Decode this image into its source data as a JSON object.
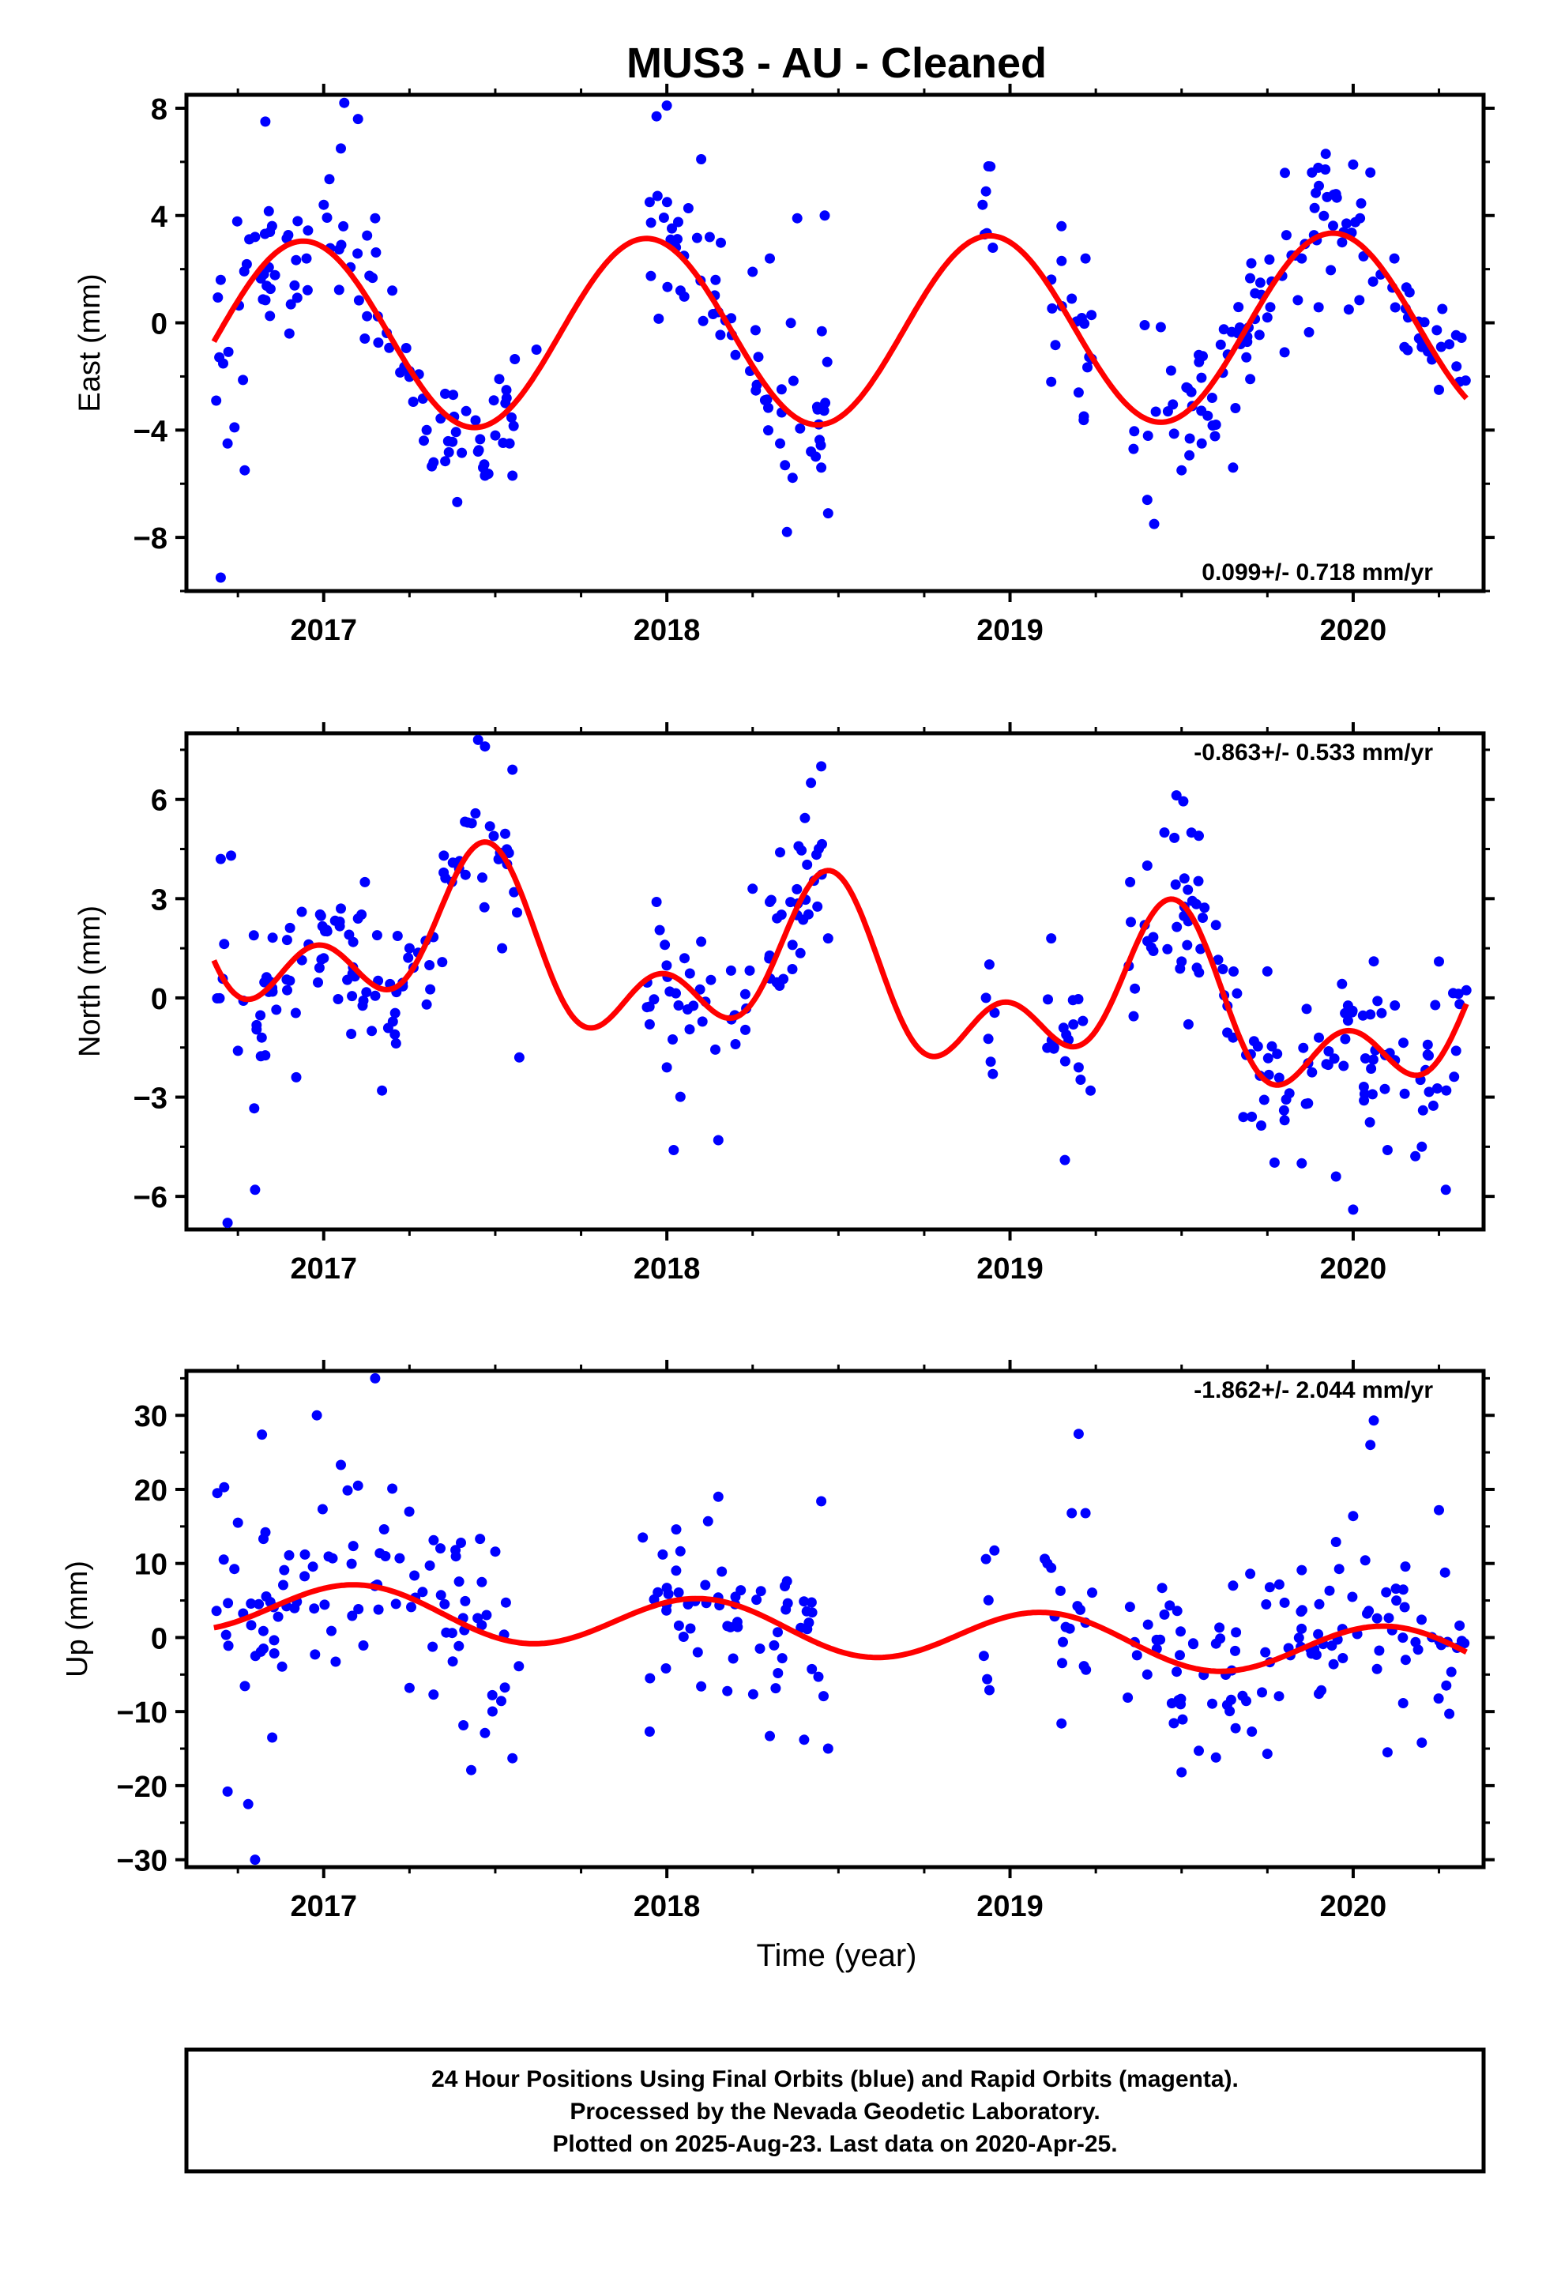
{
  "chart_data": [
    {
      "type": "scatter",
      "title": "MUS3  - AU - Cleaned",
      "ylabel": "East (mm)",
      "xlabel": "",
      "xlim": [
        2016.6,
        2020.38
      ],
      "ylim": [
        -10,
        8.5
      ],
      "y_ticks": [
        -8,
        -4,
        0,
        4,
        8
      ],
      "x_ticks": [
        2017,
        2018,
        2019,
        2020
      ],
      "rate_text": "0.099+/- 0.718 mm/yr",
      "rate_position": "bottom-right",
      "series": [
        {
          "name": "24 Hour Positions Using Final Orbits (blue)",
          "color": "#0000ff",
          "segments": [
            [
              2016.68,
              2017.57
            ],
            [
              2017.94,
              2018.47
            ],
            [
              2018.92,
              2018.96
            ],
            [
              2019.1,
              2019.24
            ],
            [
              2019.34,
              2020.33
            ]
          ],
          "points": [
            [
              2016.7,
              1.6
            ],
            [
              2016.72,
              -4.5
            ],
            [
              2016.74,
              -3.9
            ],
            [
              2016.77,
              -5.5
            ],
            [
              2016.8,
              3.2
            ],
            [
              2016.83,
              7.5
            ],
            [
              2016.7,
              -9.5
            ],
            [
              2016.9,
              -0.4
            ],
            [
              2016.95,
              2.4
            ],
            [
              2017.0,
              4.4
            ],
            [
              2017.05,
              6.5
            ],
            [
              2017.06,
              8.2
            ],
            [
              2017.1,
              7.6
            ],
            [
              2017.15,
              3.9
            ],
            [
              2017.2,
              1.2
            ],
            [
              2017.25,
              -1.8
            ],
            [
              2017.3,
              -4.0
            ],
            [
              2017.32,
              -5.2
            ],
            [
              2017.38,
              -3.5
            ],
            [
              2017.45,
              -4.8
            ],
            [
              2017.47,
              -5.7
            ],
            [
              2017.5,
              -4.2
            ],
            [
              2017.55,
              -5.7
            ],
            [
              2017.62,
              -1.0
            ],
            [
              2017.95,
              4.5
            ],
            [
              2017.97,
              7.7
            ],
            [
              2018.0,
              8.1
            ],
            [
              2018.05,
              2.5
            ],
            [
              2018.1,
              6.1
            ],
            [
              2018.15,
              0.4
            ],
            [
              2018.2,
              -1.2
            ],
            [
              2018.25,
              1.9
            ],
            [
              2018.3,
              2.4
            ],
            [
              2018.33,
              -4.5
            ],
            [
              2018.35,
              -7.8
            ],
            [
              2018.38,
              3.9
            ],
            [
              2018.42,
              -4.8
            ],
            [
              2018.45,
              -5.4
            ],
            [
              2018.46,
              4.0
            ],
            [
              2018.47,
              -7.1
            ],
            [
              2018.92,
              4.4
            ],
            [
              2018.93,
              4.9
            ],
            [
              2018.95,
              2.8
            ],
            [
              2019.12,
              -2.2
            ],
            [
              2019.15,
              3.6
            ],
            [
              2019.18,
              0.9
            ],
            [
              2019.2,
              -2.6
            ],
            [
              2019.22,
              2.4
            ],
            [
              2019.36,
              -4.7
            ],
            [
              2019.4,
              -6.6
            ],
            [
              2019.42,
              -7.5
            ],
            [
              2019.46,
              -3.3
            ],
            [
              2019.5,
              -5.5
            ],
            [
              2019.55,
              -1.2
            ],
            [
              2019.6,
              -3.8
            ],
            [
              2019.65,
              -5.4
            ],
            [
              2019.7,
              -2.1
            ],
            [
              2019.75,
              0.2
            ],
            [
              2019.8,
              -1.1
            ],
            [
              2019.85,
              2.4
            ],
            [
              2019.88,
              5.6
            ],
            [
              2019.92,
              6.3
            ],
            [
              2019.95,
              4.8
            ],
            [
              2020.0,
              5.9
            ],
            [
              2020.02,
              3.9
            ],
            [
              2020.05,
              5.6
            ],
            [
              2020.08,
              1.8
            ],
            [
              2020.12,
              2.4
            ],
            [
              2020.16,
              0.2
            ],
            [
              2020.2,
              -0.9
            ],
            [
              2020.25,
              -2.5
            ],
            [
              2020.28,
              -0.8
            ],
            [
              2020.31,
              -2.2
            ]
          ]
        },
        {
          "name": "Rapid Orbits (magenta)",
          "color": "#ff00ff",
          "points": []
        },
        {
          "name": "model",
          "color": "#ff0000",
          "mean": -0.3,
          "trend": 0.099,
          "annual_amp": 3.5,
          "annual_peak": 0.94,
          "semi_amp": 0.0,
          "semi_peak": 0.0,
          "x_range": [
            2016.68,
            2020.33
          ]
        }
      ]
    },
    {
      "type": "scatter",
      "title": "",
      "ylabel": "North (mm)",
      "xlabel": "",
      "xlim": [
        2016.6,
        2020.38
      ],
      "ylim": [
        -7,
        8
      ],
      "y_ticks": [
        -6,
        -3,
        0,
        3,
        6
      ],
      "x_ticks": [
        2017,
        2018,
        2019,
        2020
      ],
      "rate_text": "-0.863+/- 0.533 mm/yr",
      "rate_position": "top-right",
      "series": [
        {
          "name": "24 Hour Positions Using Final Orbits (blue)",
          "color": "#0000ff",
          "segments": [
            [
              2016.68,
              2017.57
            ],
            [
              2017.94,
              2018.47
            ],
            [
              2018.92,
              2018.96
            ],
            [
              2019.1,
              2019.24
            ],
            [
              2019.34,
              2020.33
            ]
          ],
          "points": [
            [
              2016.7,
              4.2
            ],
            [
              2016.73,
              4.3
            ],
            [
              2016.72,
              -6.8
            ],
            [
              2016.8,
              -5.8
            ],
            [
              2016.75,
              -1.6
            ],
            [
              2016.85,
              0.3
            ],
            [
              2016.92,
              -2.4
            ],
            [
              2017.0,
              1.2
            ],
            [
              2017.05,
              2.7
            ],
            [
              2017.1,
              2.4
            ],
            [
              2017.12,
              3.5
            ],
            [
              2017.17,
              -2.8
            ],
            [
              2017.25,
              1.5
            ],
            [
              2017.3,
              -0.2
            ],
            [
              2017.35,
              4.3
            ],
            [
              2017.42,
              5.3
            ],
            [
              2017.45,
              7.8
            ],
            [
              2017.47,
              7.6
            ],
            [
              2017.52,
              1.5
            ],
            [
              2017.55,
              6.9
            ],
            [
              2017.57,
              -1.8
            ],
            [
              2017.95,
              -0.8
            ],
            [
              2017.97,
              2.9
            ],
            [
              2018.0,
              -2.1
            ],
            [
              2018.02,
              -4.6
            ],
            [
              2018.1,
              1.7
            ],
            [
              2018.15,
              -4.3
            ],
            [
              2018.2,
              -1.4
            ],
            [
              2018.25,
              3.3
            ],
            [
              2018.3,
              2.9
            ],
            [
              2018.33,
              4.4
            ],
            [
              2018.38,
              2.5
            ],
            [
              2018.42,
              6.5
            ],
            [
              2018.45,
              7.0
            ],
            [
              2018.47,
              1.8
            ],
            [
              2018.93,
              0.0
            ],
            [
              2018.95,
              -2.3
            ],
            [
              2019.12,
              1.8
            ],
            [
              2019.16,
              -4.9
            ],
            [
              2019.2,
              -2.1
            ],
            [
              2019.35,
              3.5
            ],
            [
              2019.4,
              4.0
            ],
            [
              2019.45,
              5.0
            ],
            [
              2019.5,
              1.1
            ],
            [
              2019.52,
              -0.8
            ],
            [
              2019.55,
              4.9
            ],
            [
              2019.6,
              2.2
            ],
            [
              2019.65,
              -1.2
            ],
            [
              2019.68,
              -3.6
            ],
            [
              2019.75,
              0.8
            ],
            [
              2019.8,
              -3.7
            ],
            [
              2019.85,
              -5.0
            ],
            [
              2019.9,
              -1.2
            ],
            [
              2019.95,
              -5.4
            ],
            [
              2020.0,
              -6.4
            ],
            [
              2020.05,
              -0.5
            ],
            [
              2020.1,
              -4.6
            ],
            [
              2020.15,
              -2.9
            ],
            [
              2020.2,
              -4.5
            ],
            [
              2020.25,
              1.1
            ],
            [
              2020.27,
              -5.8
            ],
            [
              2020.3,
              -1.6
            ]
          ]
        },
        {
          "name": "Rapid Orbits (magenta)",
          "color": "#ff00ff",
          "points": []
        },
        {
          "name": "model",
          "color": "#ff0000",
          "mean": 0.55,
          "trend": -0.863,
          "annual_amp": 1.8,
          "annual_peak": 0.45,
          "semi_amp": 1.5,
          "semi_peak": 0.48,
          "x_range": [
            2016.68,
            2020.33
          ]
        }
      ]
    },
    {
      "type": "scatter",
      "title": "",
      "ylabel": "Up (mm)",
      "xlabel": "Time (year)",
      "xlim": [
        2016.6,
        2020.38
      ],
      "ylim": [
        -31,
        36
      ],
      "y_ticks": [
        -30,
        -20,
        -10,
        0,
        10,
        20,
        30
      ],
      "x_ticks": [
        2017,
        2018,
        2019,
        2020
      ],
      "rate_text": "-1.862+/- 2.044 mm/yr",
      "rate_position": "top-right",
      "series": [
        {
          "name": "24 Hour Positions Using Final Orbits (blue)",
          "color": "#0000ff",
          "segments": [
            [
              2016.68,
              2017.57
            ],
            [
              2017.94,
              2018.47
            ],
            [
              2018.92,
              2018.96
            ],
            [
              2019.1,
              2019.24
            ],
            [
              2019.34,
              2020.33
            ]
          ],
          "points": [
            [
              2016.69,
              19.5
            ],
            [
              2016.71,
              20.3
            ],
            [
              2016.75,
              15.5
            ],
            [
              2016.72,
              -20.8
            ],
            [
              2016.78,
              -22.5
            ],
            [
              2016.82,
              27.4
            ],
            [
              2016.8,
              -30.0
            ],
            [
              2016.85,
              -13.5
            ],
            [
              2016.98,
              30.0
            ],
            [
              2017.05,
              23.3
            ],
            [
              2017.1,
              20.5
            ],
            [
              2017.15,
              35.0
            ],
            [
              2017.2,
              20.1
            ],
            [
              2017.25,
              -6.8
            ],
            [
              2017.32,
              -7.7
            ],
            [
              2017.4,
              12.8
            ],
            [
              2017.43,
              -17.9
            ],
            [
              2017.47,
              -12.9
            ],
            [
              2017.5,
              11.6
            ],
            [
              2017.55,
              -16.3
            ],
            [
              2017.93,
              13.5
            ],
            [
              2017.95,
              -12.7
            ],
            [
              2018.0,
              6.7
            ],
            [
              2018.1,
              -6.6
            ],
            [
              2018.12,
              15.7
            ],
            [
              2018.15,
              19.0
            ],
            [
              2018.2,
              5.5
            ],
            [
              2018.3,
              -13.3
            ],
            [
              2018.35,
              7.6
            ],
            [
              2018.4,
              -13.8
            ],
            [
              2018.45,
              18.4
            ],
            [
              2018.47,
              -15.0
            ],
            [
              2018.93,
              10.6
            ],
            [
              2018.94,
              -7.1
            ],
            [
              2019.12,
              9.4
            ],
            [
              2019.15,
              -11.6
            ],
            [
              2019.18,
              16.8
            ],
            [
              2019.2,
              27.5
            ],
            [
              2019.22,
              16.8
            ],
            [
              2019.4,
              -5.0
            ],
            [
              2019.45,
              3.1
            ],
            [
              2019.5,
              -18.2
            ],
            [
              2019.55,
              -15.3
            ],
            [
              2019.6,
              -16.2
            ],
            [
              2019.65,
              7.0
            ],
            [
              2019.7,
              8.6
            ],
            [
              2019.75,
              -15.7
            ],
            [
              2019.8,
              4.7
            ],
            [
              2019.85,
              9.1
            ],
            [
              2019.9,
              -7.6
            ],
            [
              2019.95,
              12.9
            ],
            [
              2020.0,
              16.4
            ],
            [
              2020.05,
              26.0
            ],
            [
              2020.06,
              29.3
            ],
            [
              2020.1,
              -15.5
            ],
            [
              2020.15,
              4.1
            ],
            [
              2020.2,
              -14.2
            ],
            [
              2020.25,
              17.2
            ],
            [
              2020.28,
              -10.3
            ],
            [
              2020.31,
              1.6
            ]
          ]
        },
        {
          "name": "Rapid Orbits (magenta)",
          "color": "#ff00ff",
          "points": []
        },
        {
          "name": "model",
          "color": "#ff0000",
          "mean": 1.0,
          "trend": -1.862,
          "annual_amp": 3.5,
          "annual_peak": 0.1,
          "semi_amp": 0.0,
          "semi_peak": 0.0,
          "x_range": [
            2016.68,
            2020.33
          ]
        }
      ]
    }
  ],
  "footer": {
    "line1": "24 Hour Positions Using Final Orbits (blue) and Rapid Orbits (magenta).",
    "line2": "Processed by the Nevada Geodetic Laboratory.",
    "line3": "Plotted on 2025-Aug-23. Last data on 2020-Apr-25."
  }
}
